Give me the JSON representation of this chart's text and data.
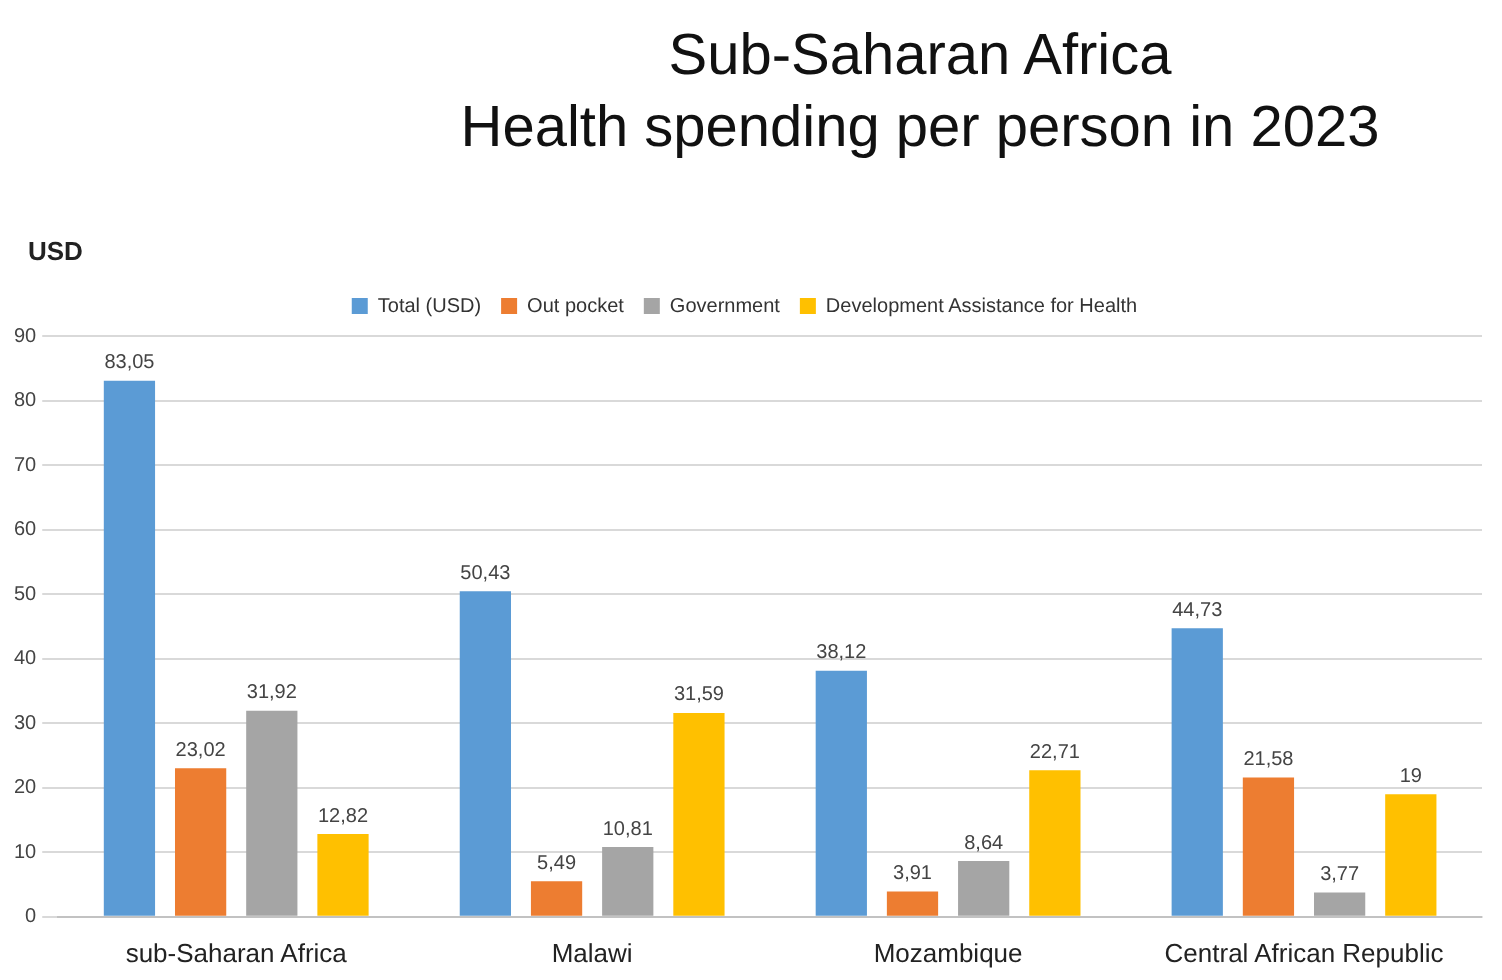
{
  "chart_data": {
    "type": "bar",
    "title": "Sub-Saharan Africa\nHealth spending per person in 2023",
    "ylabel": "USD",
    "categories": [
      "sub-Saharan Africa",
      "Malawi",
      "Mozambique",
      "Central African Republic"
    ],
    "series": [
      {
        "name": "Total (USD)",
        "color": "#5b9bd5",
        "values": [
          83.05,
          50.43,
          38.12,
          44.73
        ],
        "value_labels": [
          "83,05",
          "50,43",
          "38,12",
          "44,73"
        ]
      },
      {
        "name": "Out pocket",
        "color": "#ed7d31",
        "values": [
          23.02,
          5.49,
          3.91,
          21.58
        ],
        "value_labels": [
          "23,02",
          "5,49",
          "3,91",
          "21,58"
        ]
      },
      {
        "name": "Government",
        "color": "#a5a5a5",
        "values": [
          31.92,
          10.81,
          8.64,
          3.77
        ],
        "value_labels": [
          "31,92",
          "10,81",
          "8,64",
          "3,77"
        ]
      },
      {
        "name": "Development Assistance for Health",
        "color": "#ffc000",
        "values": [
          12.82,
          31.59,
          22.71,
          19
        ],
        "value_labels": [
          "12,82",
          "31,59",
          "22,71",
          "19"
        ]
      }
    ],
    "ylim": [
      0,
      90
    ],
    "yticks": [
      0,
      10,
      20,
      30,
      40,
      50,
      60,
      70,
      80,
      90
    ],
    "grid": "y",
    "legend": "top"
  }
}
